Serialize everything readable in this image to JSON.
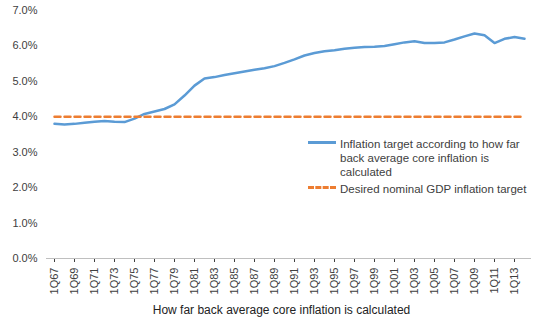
{
  "chart_data": {
    "type": "line",
    "x_label": "How  far back average core inflation is calculated",
    "categories": [
      "1Q67",
      null,
      "1Q69",
      null,
      "1Q71",
      null,
      "1Q73",
      null,
      "1Q75",
      null,
      "1Q77",
      null,
      "1Q79",
      null,
      "1Q81",
      null,
      "1Q83",
      null,
      "1Q85",
      null,
      "1Q87",
      null,
      "1Q89",
      null,
      "1Q91",
      null,
      "1Q93",
      null,
      "1Q95",
      null,
      "1Q97",
      null,
      "1Q99",
      null,
      "1Q01",
      null,
      "1Q03",
      null,
      "1Q05",
      null,
      "1Q07",
      null,
      "1Q09",
      null,
      "1Q11",
      null,
      "1Q13",
      null
    ],
    "series": [
      {
        "name": "Inflation target according to how far back average core inflation is calculated",
        "color": "#5b9bd5",
        "line_style": "solid",
        "values": [
          3.8,
          3.78,
          3.8,
          3.83,
          3.86,
          3.88,
          3.86,
          3.85,
          3.95,
          4.08,
          4.15,
          4.22,
          4.35,
          4.6,
          4.88,
          5.08,
          5.12,
          5.18,
          5.23,
          5.28,
          5.33,
          5.37,
          5.43,
          5.52,
          5.62,
          5.73,
          5.8,
          5.85,
          5.88,
          5.92,
          5.95,
          5.97,
          5.98,
          6.0,
          6.05,
          6.1,
          6.13,
          6.08,
          6.08,
          6.1,
          6.18,
          6.27,
          6.35,
          6.3,
          6.08,
          6.2,
          6.25,
          6.2
        ]
      },
      {
        "name": "Desired nominal GDP inflation target",
        "color": "#ed7d31",
        "line_style": "dashed",
        "values": [
          4.0,
          4.0,
          4.0,
          4.0,
          4.0,
          4.0,
          4.0,
          4.0,
          4.0,
          4.0,
          4.0,
          4.0,
          4.0,
          4.0,
          4.0,
          4.0,
          4.0,
          4.0,
          4.0,
          4.0,
          4.0,
          4.0,
          4.0,
          4.0,
          4.0,
          4.0,
          4.0,
          4.0,
          4.0,
          4.0,
          4.0,
          4.0,
          4.0,
          4.0,
          4.0,
          4.0,
          4.0,
          4.0,
          4.0,
          4.0,
          4.0,
          4.0,
          4.0,
          4.0,
          4.0,
          4.0,
          4.0,
          4.0
        ]
      }
    ],
    "ylim": [
      0,
      7
    ],
    "yticks": [
      {
        "value": 0,
        "label": "0.0%"
      },
      {
        "value": 1,
        "label": "1.0%"
      },
      {
        "value": 2,
        "label": "2.0%"
      },
      {
        "value": 3,
        "label": "3.0%"
      },
      {
        "value": 4,
        "label": "4.0%"
      },
      {
        "value": 5,
        "label": "5.0%"
      },
      {
        "value": 6,
        "label": "6.0%"
      },
      {
        "value": 7,
        "label": "7.0%"
      }
    ],
    "grid": false,
    "legend": "right"
  }
}
